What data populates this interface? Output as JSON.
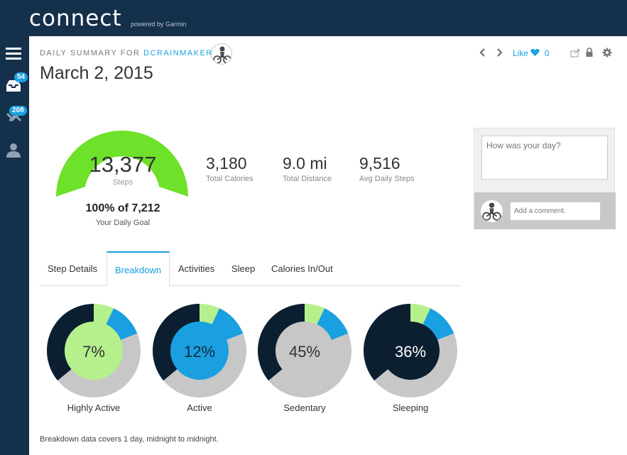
{
  "app": {
    "logo_text": "connect",
    "logo_sub": "powered by Garmin"
  },
  "sidebar": {
    "items": [
      {
        "icon": "menu-icon"
      },
      {
        "icon": "inbox-icon",
        "badge": "54"
      },
      {
        "icon": "connections-icon",
        "badge": "208"
      },
      {
        "icon": "profile-icon"
      }
    ]
  },
  "header": {
    "summary_prefix": "DAILY SUMMARY FOR ",
    "username": "DCRAINMAKER",
    "date": "March 2, 2015",
    "like_label": "Like",
    "like_count": "0",
    "icons": [
      "prev-day-icon",
      "next-day-icon",
      "heart-icon",
      "share-icon",
      "lock-icon",
      "gear-icon"
    ]
  },
  "steps": {
    "value": "13,377",
    "label": "Steps",
    "goal_text": "100% of 7,212",
    "goal_label": "Your Daily Goal",
    "goal_progress": 1.0,
    "color": "#6ee12a"
  },
  "stats": [
    {
      "value": "3,180",
      "label": "Total Calories"
    },
    {
      "value": "9.0 mi",
      "label": "Total Distance"
    },
    {
      "value": "9,516",
      "label": "Avg Daily Steps"
    }
  ],
  "tabs": [
    {
      "label": "Step Details",
      "active": false
    },
    {
      "label": "Breakdown",
      "active": true
    },
    {
      "label": "Activities",
      "active": false
    },
    {
      "label": "Sleep",
      "active": false
    },
    {
      "label": "Calories In/Out",
      "active": false
    }
  ],
  "breakdown": {
    "segments": [
      {
        "name": "Highly Active",
        "percent": 7,
        "color": "#b5f08d"
      },
      {
        "name": "Active",
        "percent": 12,
        "color": "#1aa0e0"
      },
      {
        "name": "Sedentary",
        "percent": 45,
        "color": "#c7c7c7"
      },
      {
        "name": "Sleeping",
        "percent": 36,
        "color": "#0c1f30"
      }
    ],
    "donuts": [
      {
        "label": "Highly Active",
        "pct_text": "7%",
        "highlight": 0,
        "center_color": "#b5f08d",
        "text_color": "#333333"
      },
      {
        "label": "Active",
        "pct_text": "12%",
        "highlight": 1,
        "center_color": "#1aa0e0",
        "text_color": "#0c2a40"
      },
      {
        "label": "Sedentary",
        "pct_text": "45%",
        "highlight": 2,
        "center_color": "#c7c7c7",
        "text_color": "#333333"
      },
      {
        "label": "Sleeping",
        "pct_text": "36%",
        "highlight": 3,
        "center_color": "#0c1f30",
        "text_color": "#ffffff"
      }
    ],
    "note": "Breakdown data covers 1 day, midnight to midnight."
  },
  "comments": {
    "day_placeholder": "How was your day?",
    "comment_placeholder": "Add a comment."
  }
}
